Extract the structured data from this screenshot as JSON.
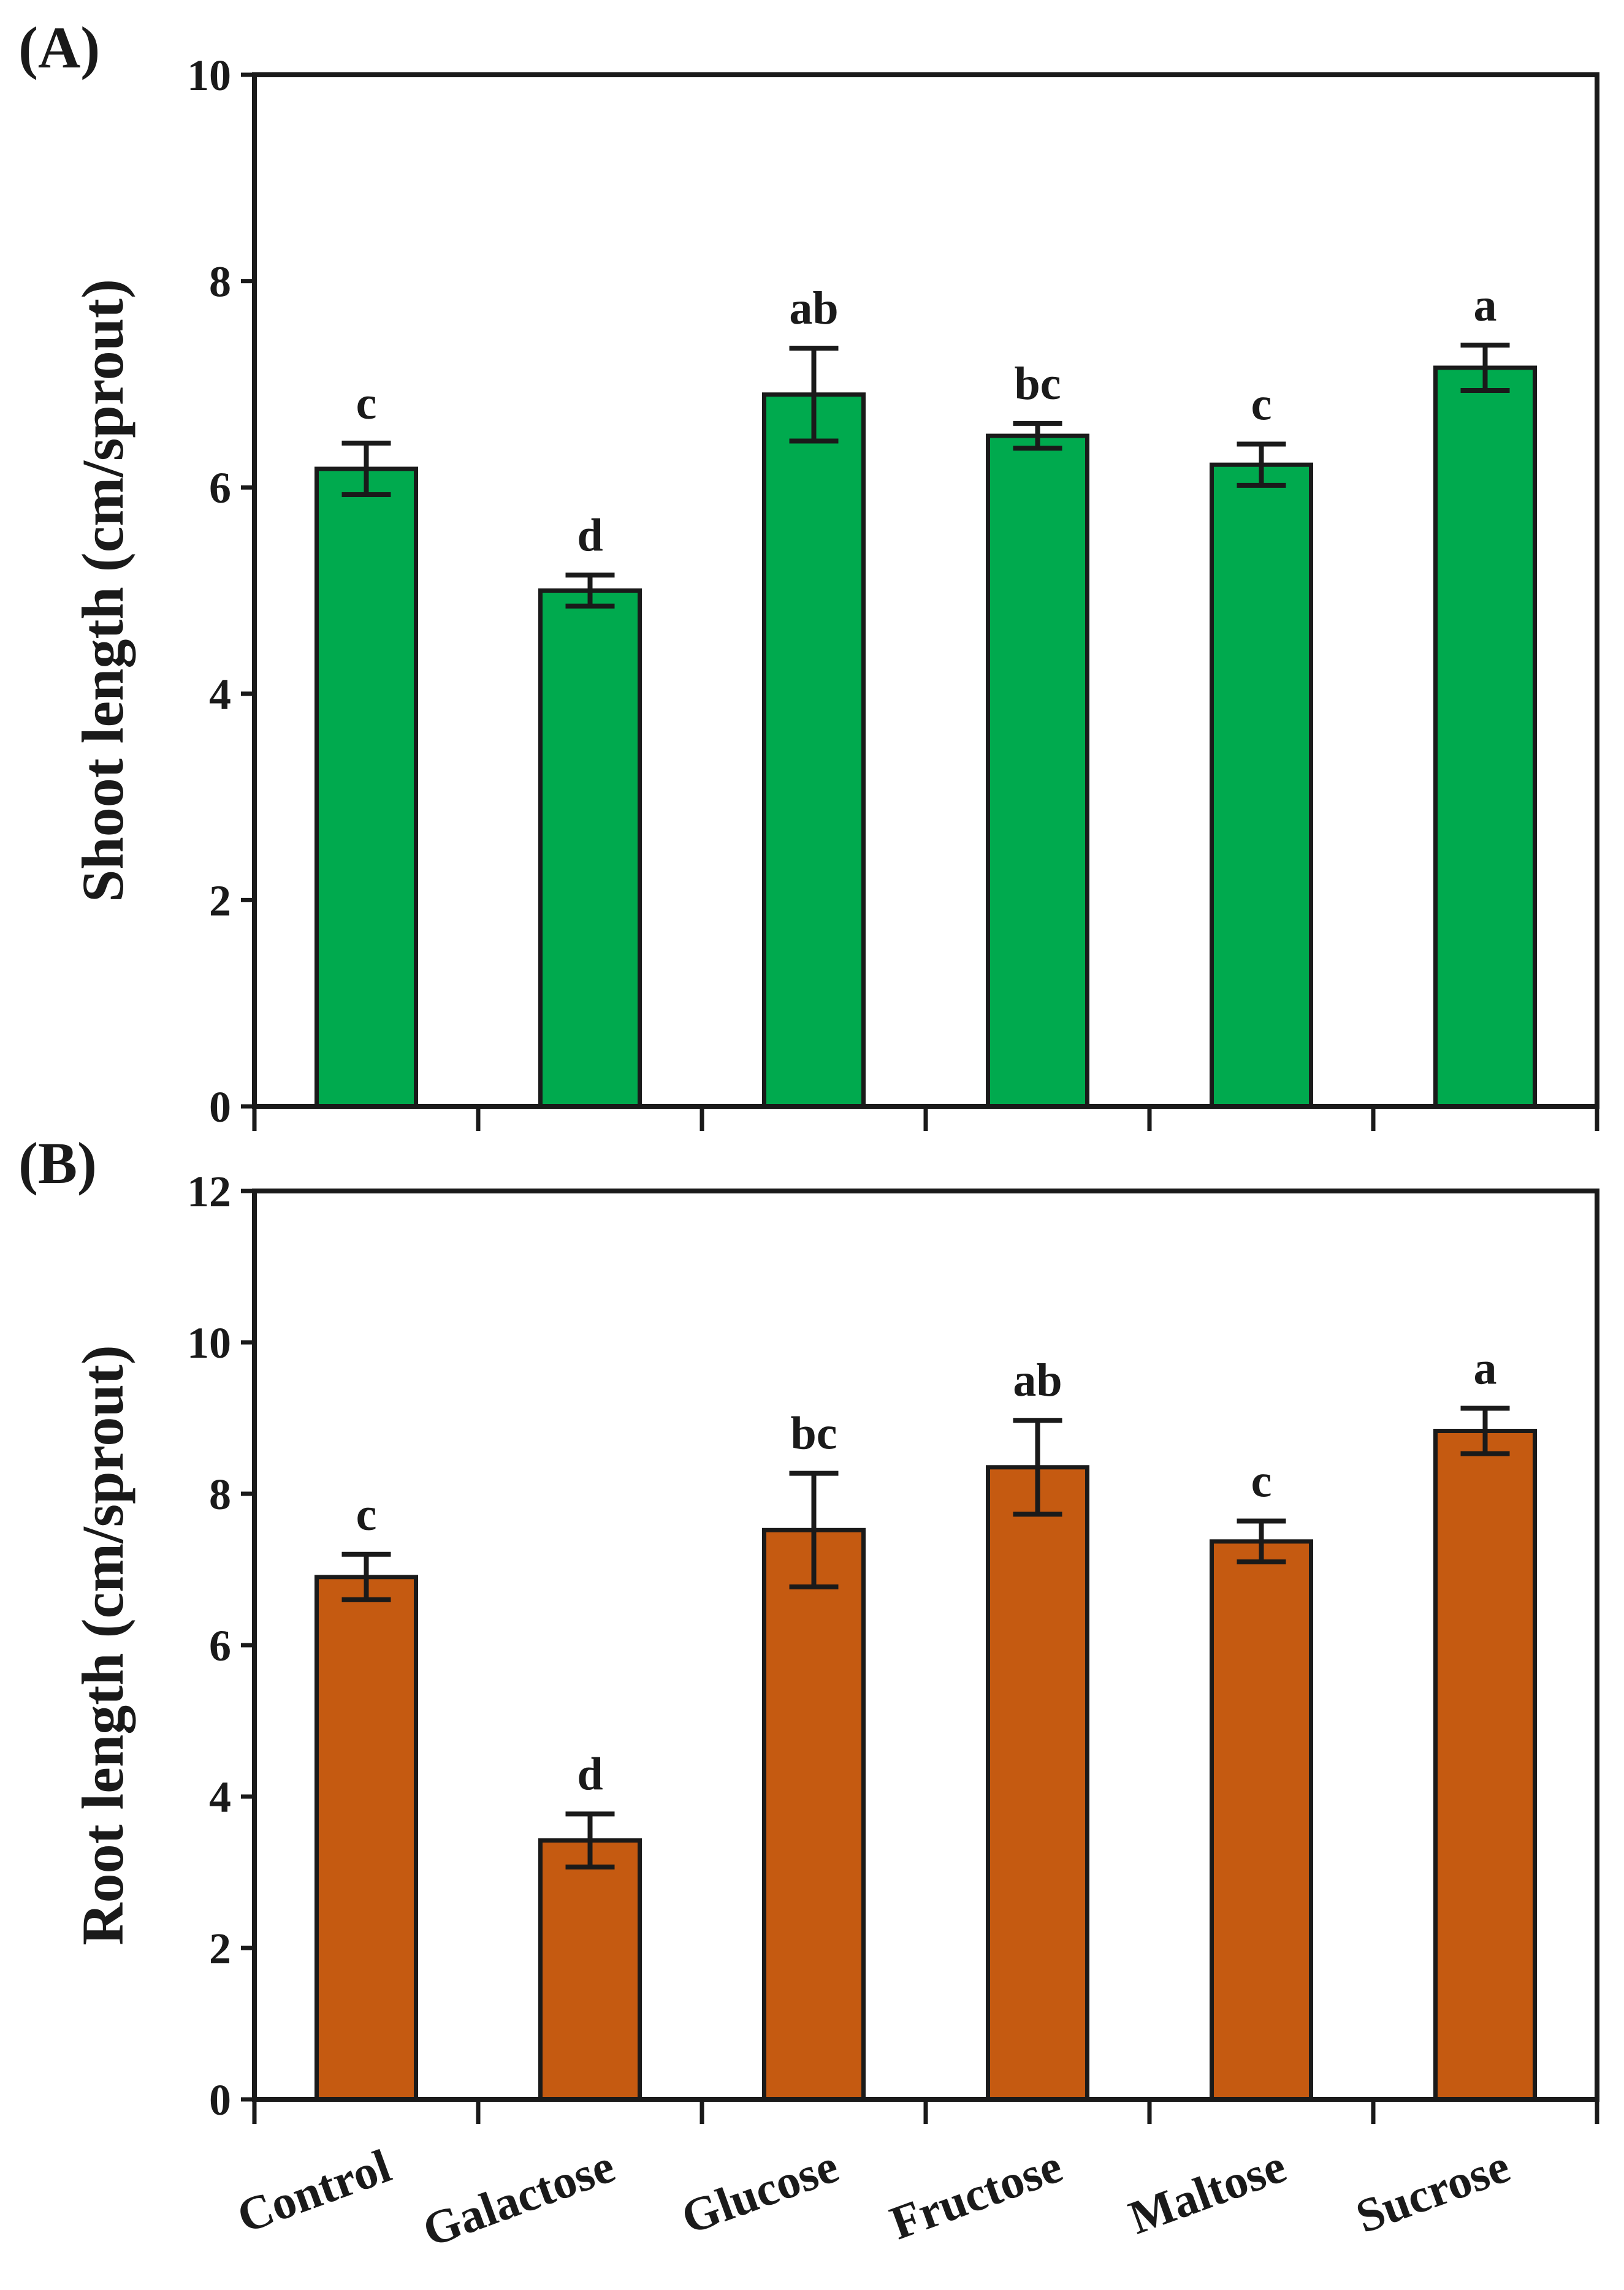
{
  "chart_data": [
    {
      "type": "bar",
      "panel_label": "(A)",
      "categories": [
        "Control",
        "Galactose",
        "Glucose",
        "Fructose",
        "Maltose",
        "Sucrose"
      ],
      "values": [
        6.18,
        5.0,
        6.9,
        6.5,
        6.22,
        7.16
      ],
      "errors": [
        0.25,
        0.15,
        0.45,
        0.12,
        0.2,
        0.22
      ],
      "significance": [
        "c",
        "d",
        "ab",
        "bc",
        "c",
        "a"
      ],
      "ylabel": "Shoot length (cm/sprout)",
      "ylim": [
        0,
        10
      ],
      "yticks": [
        0,
        2,
        4,
        6,
        8,
        10
      ],
      "bar_color": "#00aa4e",
      "show_category_labels": false
    },
    {
      "type": "bar",
      "panel_label": "(B)",
      "categories": [
        "Control",
        "Galactose",
        "Glucose",
        "Fructose",
        "Maltose",
        "Sucrose"
      ],
      "values": [
        6.9,
        3.42,
        7.52,
        8.35,
        7.37,
        8.83
      ],
      "errors": [
        0.3,
        0.35,
        0.75,
        0.62,
        0.27,
        0.3
      ],
      "significance": [
        "c",
        "d",
        "bc",
        "ab",
        "c",
        "a"
      ],
      "ylabel": "Root length (cm/sprout)",
      "ylim": [
        0,
        12
      ],
      "yticks": [
        0,
        2,
        4,
        6,
        8,
        10,
        12
      ],
      "bar_color": "#c55a11",
      "show_category_labels": true
    }
  ]
}
